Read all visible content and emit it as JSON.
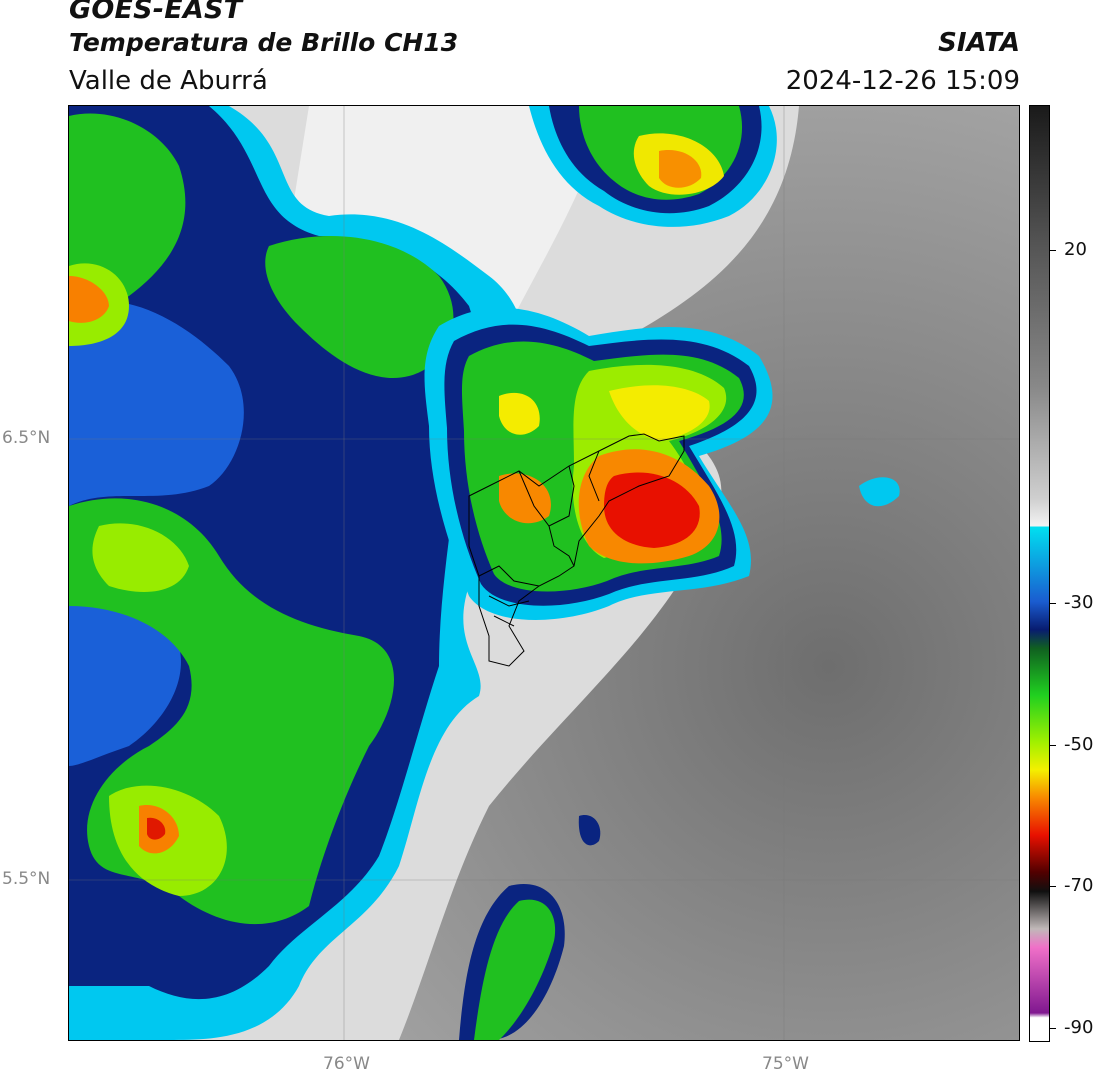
{
  "header": {
    "satellite": "GOES-EAST",
    "product": "Temperatura de Brillo CH13",
    "region": "Valle de Aburrá",
    "organization": "SIATA",
    "timestamp": "2024-12-26 15:09"
  },
  "map": {
    "lat_labels": [
      "6.5°N",
      "5.5°N"
    ],
    "lon_labels": [
      "76°W",
      "75°W"
    ]
  },
  "colorbar": {
    "tick_labels": [
      "20",
      "-30",
      "-50",
      "-70",
      "-90"
    ],
    "colors": {
      "warm_gray": "#8a8a8a",
      "light": "#e8e8e8",
      "cyan": "#00d0f0",
      "blue": "#0a4cc8",
      "navy": "#0a1e78",
      "green": "#1ec81e",
      "lime": "#a0f000",
      "yellow": "#f8f000",
      "orange": "#f88800",
      "red": "#e81000",
      "black": "#101010",
      "magenta": "#e040c0",
      "purple": "#701880"
    }
  }
}
